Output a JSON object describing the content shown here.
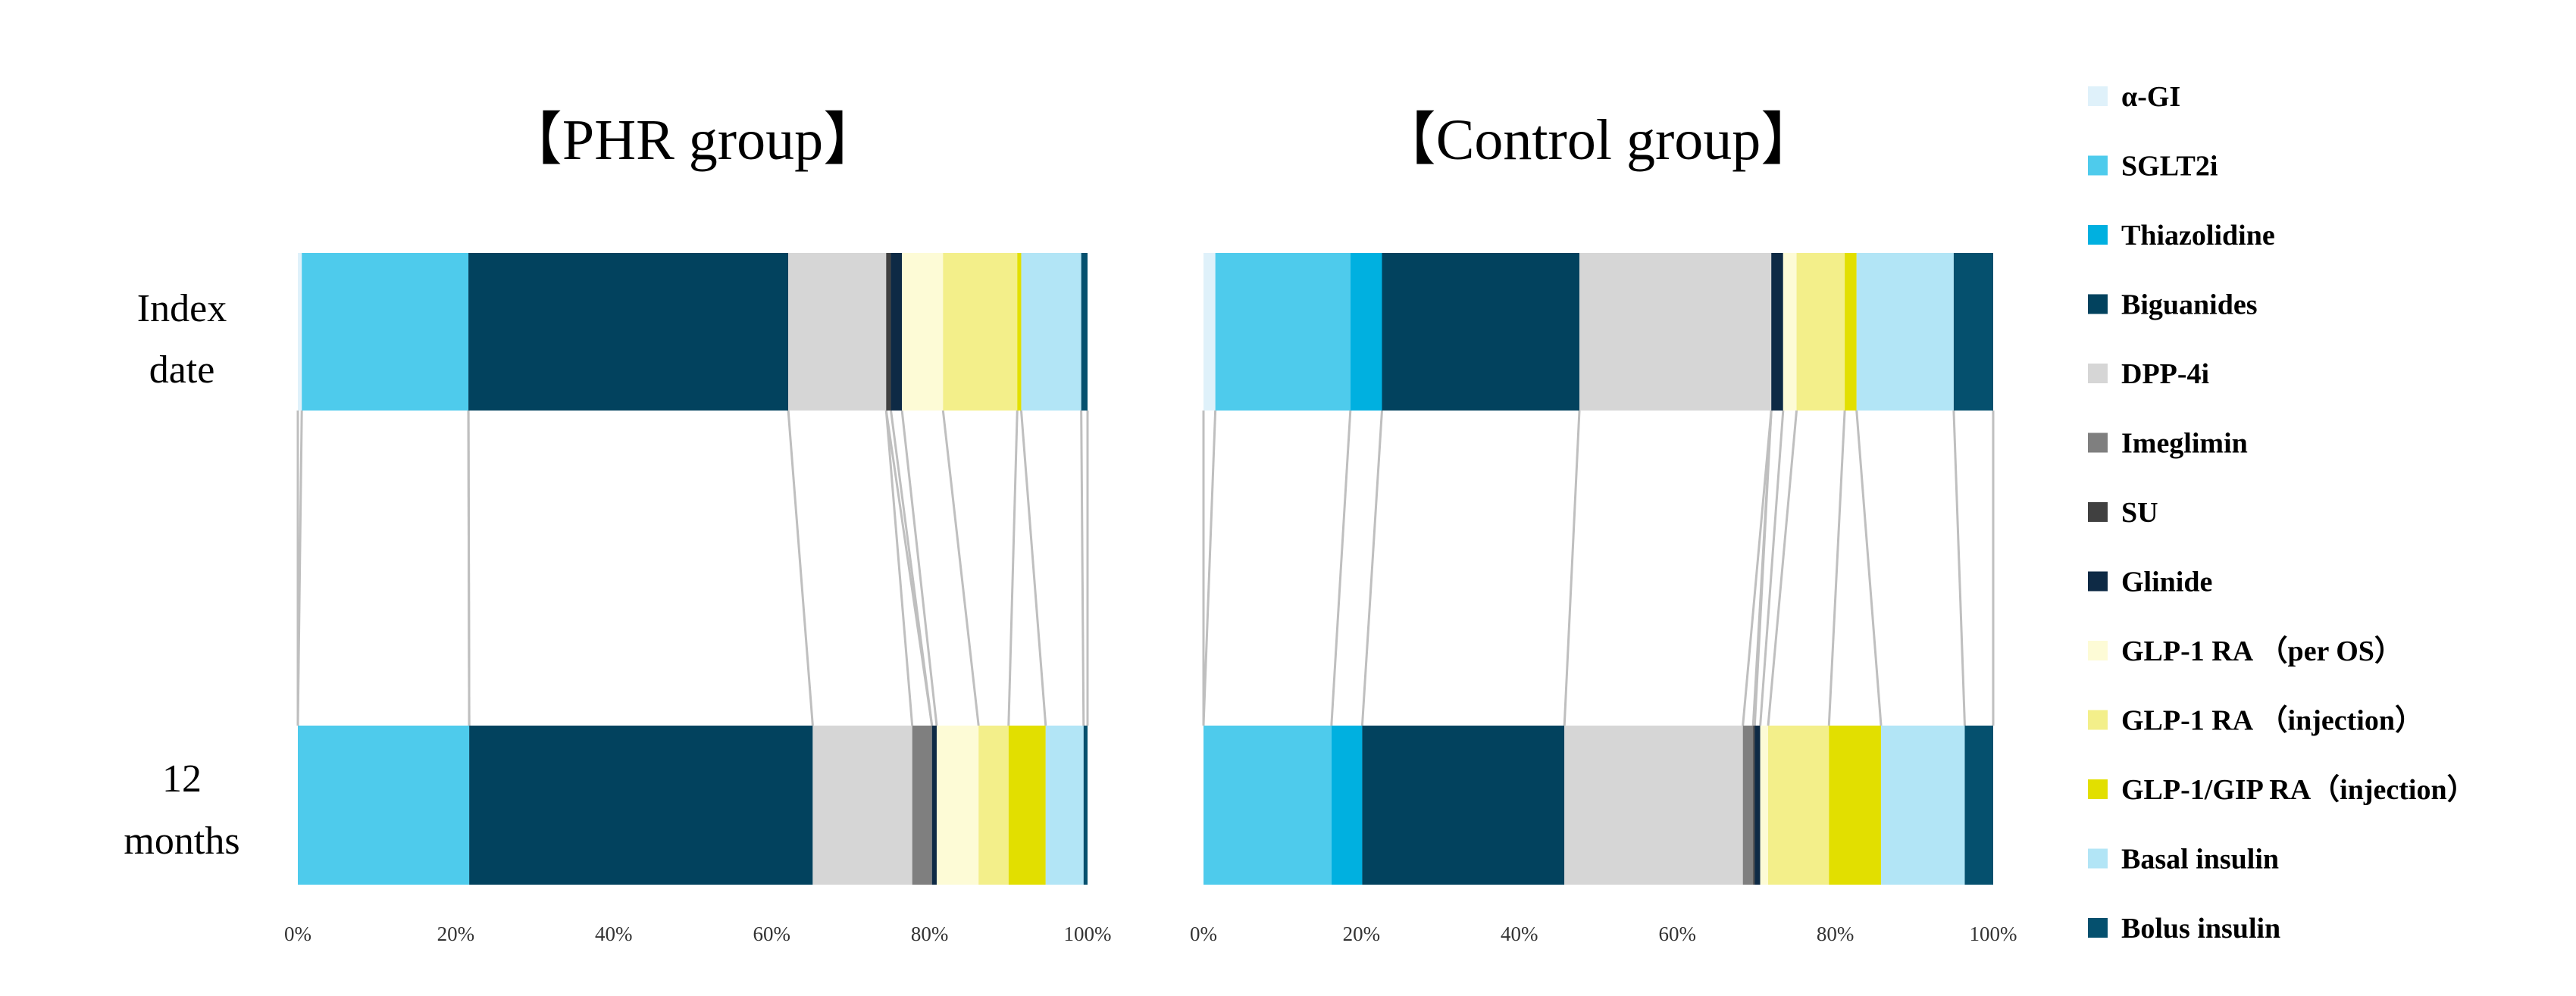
{
  "chart_data": {
    "type": "bar",
    "stacked": "percent",
    "orientation": "horizontal",
    "row_labels": [
      [
        "Index",
        "date"
      ],
      [
        "12",
        "months"
      ]
    ],
    "x_ticks": [
      "0%",
      "20%",
      "40%",
      "60%",
      "80%",
      "100%"
    ],
    "xlim": [
      0,
      100
    ],
    "grid": false,
    "legend_position": "right",
    "categories": [
      {
        "name": "α-GI",
        "color": "#dff1fa"
      },
      {
        "name": "SGLT2i",
        "color": "#4ecbec"
      },
      {
        "name": "Thiazolidine",
        "color": "#00b0e0"
      },
      {
        "name": "Biguanides",
        "color": "#02425e"
      },
      {
        "name": "DPP-4i",
        "color": "#d6d6d6"
      },
      {
        "name": "Imeglimin",
        "color": "#7f7f7f"
      },
      {
        "name": "SU",
        "color": "#404040"
      },
      {
        "name": "Glinide",
        "color": "#0e2a45"
      },
      {
        "name": "GLP-1 RA （per OS）",
        "color": "#fdfbd6"
      },
      {
        "name": "GLP-1 RA （injection）",
        "color": "#f3ef8a"
      },
      {
        "name": "GLP-1/GIP RA（injection）",
        "color": "#e2df00"
      },
      {
        "name": "Basal insulin",
        "color": "#b2e5f6"
      },
      {
        "name": "Bolus insulin",
        "color": "#05506e"
      }
    ],
    "panels": [
      {
        "title": "【PHR group】",
        "rows": [
          {
            "label": "Index date",
            "values": [
              0.5,
              21.1,
              0,
              40.5,
              12.4,
              0,
              0.6,
              1.4,
              5.2,
              9.4,
              0.5,
              7.6,
              0.8
            ]
          },
          {
            "label": "12 months",
            "values": [
              0,
              21.7,
              0,
              43.5,
              12.6,
              2.5,
              0,
              0.6,
              5.3,
              3.8,
              4.7,
              4.8,
              0.5
            ]
          }
        ]
      },
      {
        "title": "【Control group】",
        "rows": [
          {
            "label": "Index date",
            "values": [
              1.5,
              17.1,
              4.0,
              25.0,
              24.3,
              0,
              0,
              1.5,
              1.7,
              6.1,
              1.5,
              12.3,
              5.0
            ]
          },
          {
            "label": "12 months",
            "values": [
              0,
              16.2,
              3.9,
              25.6,
              22.6,
              1.3,
              0.2,
              0.7,
              1.0,
              7.7,
              6.6,
              10.6,
              3.6
            ]
          }
        ]
      }
    ]
  }
}
